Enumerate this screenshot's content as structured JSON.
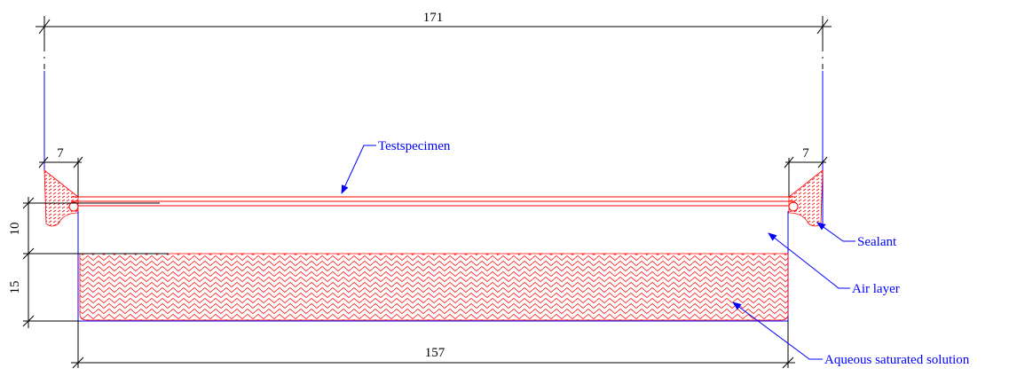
{
  "dimensions": {
    "overall_width": 171,
    "sealant_left": 7,
    "sealant_right": 7,
    "air_gap": 10,
    "solution_depth": 15,
    "inner_width": 157
  },
  "labels": {
    "specimen": "Testspecimen",
    "sealant": "Sealant",
    "air": "Air layer",
    "solution": "Aqueous saturated solution"
  }
}
